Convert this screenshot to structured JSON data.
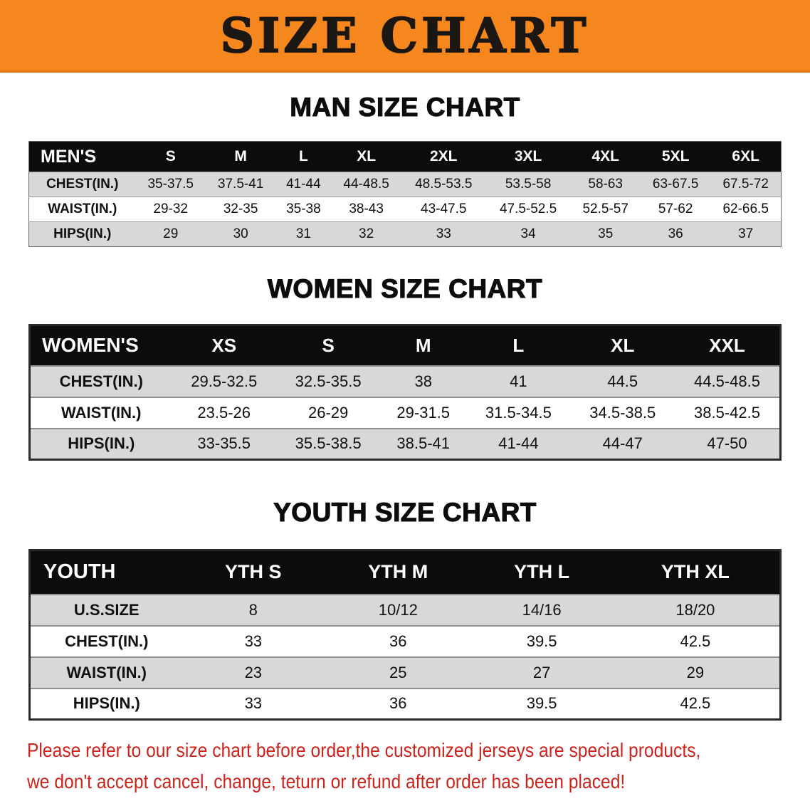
{
  "banner": {
    "title": "SIZE CHART"
  },
  "chart_data": [
    {
      "type": "table",
      "title": "MAN SIZE CHART",
      "corner_label": "MEN'S",
      "columns": [
        "S",
        "M",
        "L",
        "XL",
        "2XL",
        "3XL",
        "4XL",
        "5XL",
        "6XL"
      ],
      "rows": [
        {
          "label": "CHEST(IN.)",
          "values": [
            "35-37.5",
            "37.5-41",
            "41-44",
            "44-48.5",
            "48.5-53.5",
            "53.5-58",
            "58-63",
            "63-67.5",
            "67.5-72"
          ]
        },
        {
          "label": "WAIST(IN.)",
          "values": [
            "29-32",
            "32-35",
            "35-38",
            "38-43",
            "43-47.5",
            "47.5-52.5",
            "52.5-57",
            "57-62",
            "62-66.5"
          ]
        },
        {
          "label": "HIPS(IN.)",
          "values": [
            "29",
            "30",
            "31",
            "32",
            "33",
            "34",
            "35",
            "36",
            "37"
          ]
        }
      ]
    },
    {
      "type": "table",
      "title": "WOMEN SIZE CHART",
      "corner_label": "WOMEN'S",
      "columns": [
        "XS",
        "S",
        "M",
        "L",
        "XL",
        "XXL"
      ],
      "rows": [
        {
          "label": "CHEST(IN.)",
          "values": [
            "29.5-32.5",
            "32.5-35.5",
            "38",
            "41",
            "44.5",
            "44.5-48.5"
          ]
        },
        {
          "label": "WAIST(IN.)",
          "values": [
            "23.5-26",
            "26-29",
            "29-31.5",
            "31.5-34.5",
            "34.5-38.5",
            "38.5-42.5"
          ]
        },
        {
          "label": "HIPS(IN.)",
          "values": [
            "33-35.5",
            "35.5-38.5",
            "38.5-41",
            "41-44",
            "44-47",
            "47-50"
          ]
        }
      ]
    },
    {
      "type": "table",
      "title": "YOUTH SIZE CHART",
      "corner_label": "YOUTH",
      "columns": [
        "YTH S",
        "YTH M",
        "YTH L",
        "YTH XL"
      ],
      "rows": [
        {
          "label": "U.S.SIZE",
          "values": [
            "8",
            "10/12",
            "14/16",
            "18/20"
          ]
        },
        {
          "label": "CHEST(IN.)",
          "values": [
            "33",
            "36",
            "39.5",
            "42.5"
          ]
        },
        {
          "label": "WAIST(IN.)",
          "values": [
            "23",
            "25",
            "27",
            "29"
          ]
        },
        {
          "label": "HIPS(IN.)",
          "values": [
            "33",
            "36",
            "39.5",
            "42.5"
          ]
        }
      ]
    }
  ],
  "disclaimer": {
    "lines": [
      "Please refer to our size chart before order,the customized jerseys are special products,",
      "we don't accept cancel, change, teturn or refund after order has been placed!"
    ]
  },
  "colors": {
    "banner_bg": "#f6871f",
    "banner_text": "#1b1713",
    "table_header_bg": "#0c0c0c",
    "table_header_text": "#ffffff",
    "row_stripe": "#d8d8d8",
    "text": "#111111",
    "disclaimer_text": "#cd231d"
  }
}
